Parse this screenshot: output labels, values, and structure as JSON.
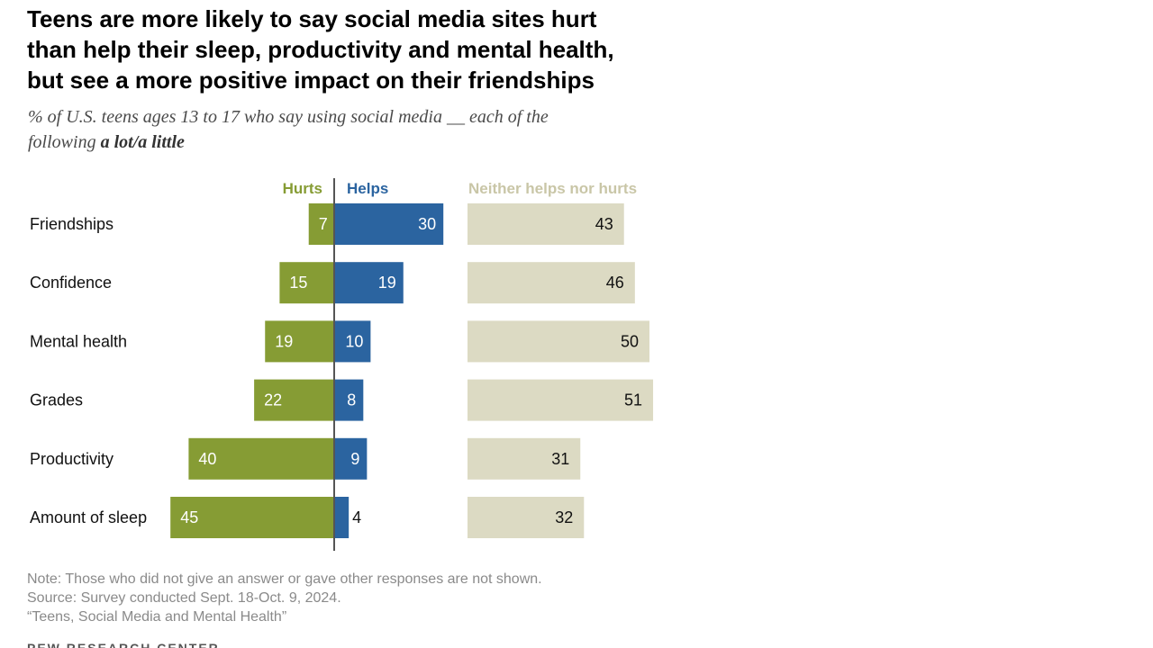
{
  "title_lines": [
    "Teens are more likely to say social media sites hurt",
    "than help their sleep, productivity and mental health,",
    "but see a more positive impact on their friendships"
  ],
  "subtitle": {
    "line1": "% of U.S. teens ages 13 to 17 who say using social media __ each of the",
    "line2_prefix": "following ",
    "line2_bold": "a lot/a little"
  },
  "colors": {
    "hurts": "#869c34",
    "helps": "#2b64a0",
    "neither": "#dcdac3",
    "neither_label": "#c9c6a7",
    "axis": "#555555"
  },
  "chart_data": {
    "type": "bar",
    "orientation": "horizontal",
    "categories": [
      "Friendships",
      "Confidence",
      "Mental health",
      "Grades",
      "Productivity",
      "Amount of sleep"
    ],
    "series": [
      {
        "name": "Hurts",
        "values": [
          7,
          15,
          19,
          22,
          40,
          45
        ]
      },
      {
        "name": "Helps",
        "values": [
          30,
          19,
          10,
          8,
          9,
          4
        ]
      },
      {
        "name": "Neither helps nor hurts",
        "values": [
          43,
          46,
          50,
          51,
          31,
          32
        ]
      }
    ],
    "legend_placement": "top",
    "grid": false
  },
  "notes": {
    "note": "Note: Those who did not give an answer or gave other responses are not shown.",
    "source": "Source: Survey conducted Sept. 18-Oct. 9, 2024.",
    "report": "“Teens, Social Media and Mental Health”"
  },
  "logo": "PEW RESEARCH CENTER"
}
